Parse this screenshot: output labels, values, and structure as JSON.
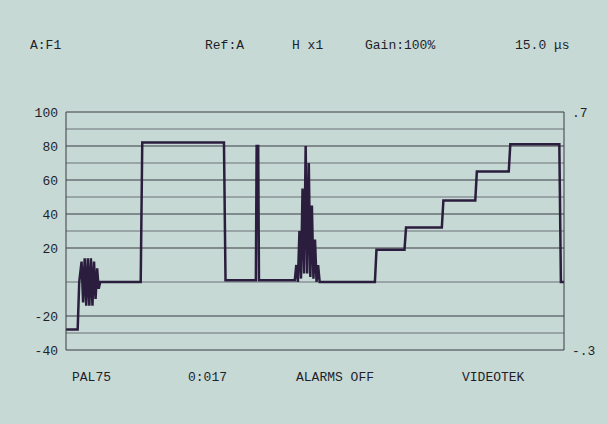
{
  "chart_data": {
    "type": "line",
    "header": [
      "A:F1",
      "Ref:A",
      "H x1",
      "Gain:100%",
      "15.0 μs"
    ],
    "footer": [
      "PAL75",
      "0:017",
      "ALARMS OFF",
      "VIDEOTEK"
    ],
    "x": [
      0,
      1.5,
      1.7,
      2.0,
      2.2,
      2.4,
      2.6,
      2.8,
      3.0,
      3.2,
      3.4,
      3.6,
      3.8,
      4.0,
      4.2,
      4.4,
      9.6,
      9.8,
      20.3,
      20.5,
      24.4,
      24.5,
      24.7,
      24.8,
      29.4,
      29.6,
      29.8,
      30.0,
      30.2,
      30.4,
      30.6,
      30.8,
      31.0,
      31.2,
      31.4,
      31.6,
      31.8,
      32.0,
      32.2,
      32.4,
      32.6,
      39.7,
      39.9,
      43.5,
      43.7,
      48.3,
      48.5,
      52.6,
      52.8,
      56.9,
      57.1,
      63.4,
      63.6,
      64
    ],
    "values": [
      -28,
      -28,
      0,
      12,
      -12,
      14,
      -14,
      14,
      -14,
      14,
      -14,
      12,
      -10,
      8,
      -4,
      0,
      0,
      82,
      82,
      1,
      1,
      80,
      80,
      1,
      1,
      10,
      0,
      30,
      2,
      55,
      5,
      80,
      5,
      70,
      3,
      45,
      2,
      25,
      0,
      10,
      0,
      0,
      19,
      19,
      32,
      32,
      48,
      48,
      65,
      65,
      81,
      81,
      0,
      0
    ],
    "color": "#2b1d3d",
    "xlim": [
      0,
      64
    ],
    "ylim": [
      -40,
      100
    ],
    "yticks": [
      -40,
      -20,
      20,
      40,
      60,
      80,
      100
    ],
    "y2lim": [
      -0.3,
      0.7
    ],
    "y2ticks": [
      {
        "value": -0.3,
        "label": "-.3"
      },
      {
        "value": 0.7,
        "label": ".7"
      }
    ],
    "grid": true,
    "tick_labels": "y"
  }
}
